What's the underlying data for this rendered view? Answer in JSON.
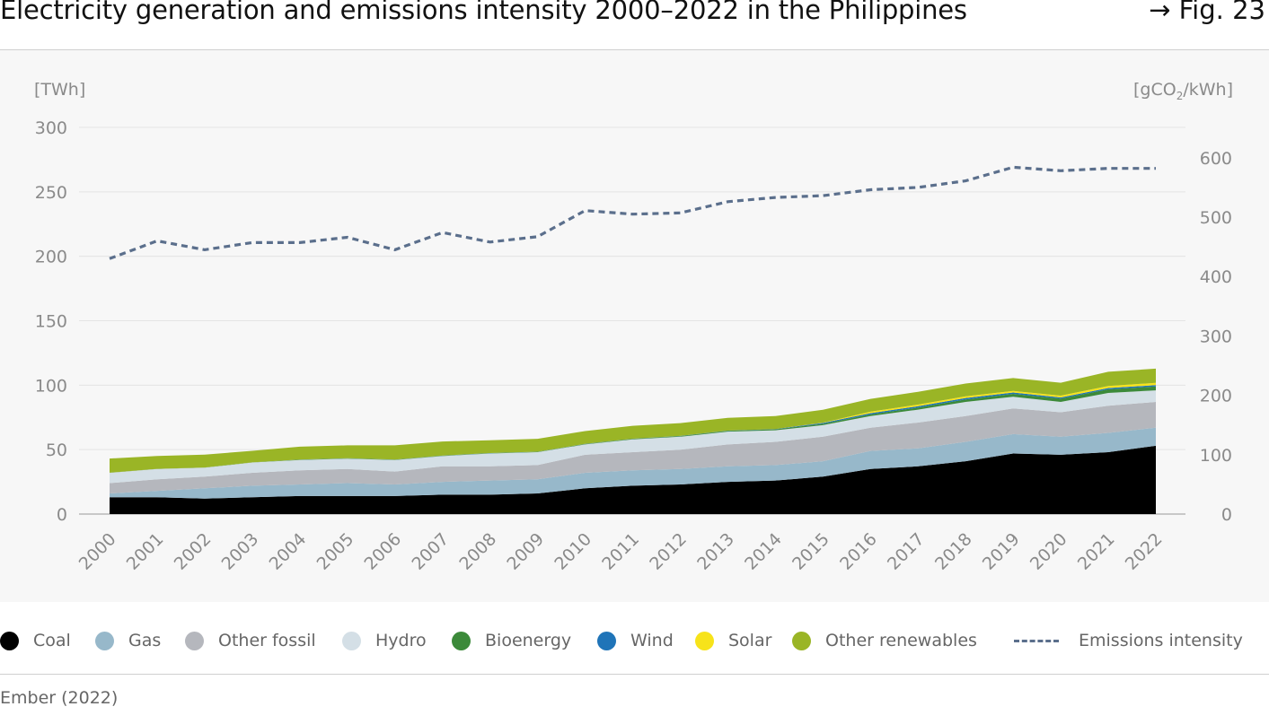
{
  "header": {
    "title": "Electricity generation and emissions intensity 2000–2022 in the Philippines",
    "fig": "→ Fig. 23"
  },
  "source": "Ember (2022)",
  "legend": [
    {
      "key": "coal",
      "label": "Coal",
      "color": "#000000",
      "style": "dot"
    },
    {
      "key": "gas",
      "label": "Gas",
      "color": "#97b8ca",
      "style": "dot"
    },
    {
      "key": "other_fossil",
      "label": "Other fossil",
      "color": "#b5b7bd",
      "style": "dot"
    },
    {
      "key": "hydro",
      "label": "Hydro",
      "color": "#d4dfe6",
      "style": "dot"
    },
    {
      "key": "bioenergy",
      "label": "Bioenergy",
      "color": "#3c8a3a",
      "style": "dot"
    },
    {
      "key": "wind",
      "label": "Wind",
      "color": "#1f74b8",
      "style": "dot"
    },
    {
      "key": "solar",
      "label": "Solar",
      "color": "#f7e31a",
      "style": "dot"
    },
    {
      "key": "other_renewables",
      "label": "Other renewables",
      "color": "#9ab526",
      "style": "dot"
    },
    {
      "key": "emissions",
      "label": "Emissions intensity",
      "color": "#5b6f8c",
      "style": "dash"
    }
  ],
  "chart_data": {
    "type": "area",
    "title": "Electricity generation and emissions intensity 2000–2022 in the Philippines",
    "x": [
      "2000",
      "2001",
      "2002",
      "2003",
      "2004",
      "2005",
      "2006",
      "2007",
      "2008",
      "2009",
      "2010",
      "2011",
      "2012",
      "2013",
      "2014",
      "2015",
      "2016",
      "2017",
      "2018",
      "2019",
      "2020",
      "2021",
      "2022"
    ],
    "left_axis": {
      "label": "[TWh]",
      "ylim": [
        0,
        300
      ],
      "ticks": [
        0,
        50,
        100,
        150,
        200,
        250,
        300
      ]
    },
    "right_axis": {
      "label_parts": [
        "[gCO",
        "2",
        "/kWh]"
      ],
      "ylim": [
        0,
        650
      ],
      "ticks": [
        0,
        100,
        200,
        300,
        400,
        500,
        600
      ]
    },
    "grid": true,
    "legend_position": "bottom",
    "stacked_series": [
      {
        "key": "coal",
        "name": "Coal",
        "color": "#000000",
        "values": [
          13,
          13,
          12,
          13,
          14,
          14,
          14,
          15,
          15,
          16,
          20,
          22,
          23,
          25,
          26,
          29,
          35,
          37,
          41,
          47,
          46,
          48,
          53
        ]
      },
      {
        "key": "gas",
        "name": "Gas",
        "color": "#97b8ca",
        "values": [
          3,
          5,
          8,
          9,
          9,
          10,
          9,
          10,
          11,
          11,
          12,
          12,
          12,
          12,
          12,
          12,
          14,
          14,
          15,
          15,
          14,
          15,
          14
        ]
      },
      {
        "key": "other_fossil",
        "name": "Other fossil",
        "color": "#b5b7bd",
        "values": [
          8,
          9,
          9,
          10,
          11,
          11,
          10,
          12,
          11,
          11,
          14,
          14,
          15,
          17,
          18,
          19,
          18,
          20,
          20,
          20,
          19,
          21,
          20
        ]
      },
      {
        "key": "hydro",
        "name": "Hydro",
        "color": "#d4dfe6",
        "values": [
          8,
          8,
          7,
          8,
          8,
          8,
          9,
          8,
          10,
          10,
          8,
          10,
          10,
          10,
          9,
          9,
          9,
          10,
          11,
          9,
          8,
          10,
          9
        ]
      },
      {
        "key": "bioenergy",
        "name": "Bioenergy",
        "color": "#3c8a3a",
        "values": [
          0.1,
          0.1,
          0.1,
          0.1,
          0.2,
          0.2,
          0.2,
          0.2,
          0.2,
          0.3,
          0.3,
          0.4,
          0.5,
          0.6,
          0.8,
          1.0,
          1.3,
          1.6,
          1.9,
          2.3,
          2.6,
          2.8,
          3.0
        ]
      },
      {
        "key": "wind",
        "name": "Wind",
        "color": "#1f74b8",
        "values": [
          0,
          0,
          0,
          0,
          0.1,
          0.1,
          0.1,
          0.1,
          0.1,
          0.1,
          0.1,
          0.1,
          0.1,
          0.1,
          0.2,
          0.7,
          1.0,
          1.1,
          1.2,
          1.0,
          0.9,
          1.0,
          1.0
        ]
      },
      {
        "key": "solar",
        "name": "Solar",
        "color": "#f7e31a",
        "values": [
          0,
          0,
          0,
          0,
          0,
          0,
          0,
          0,
          0,
          0,
          0,
          0,
          0,
          0,
          0,
          0.2,
          1.1,
          1.2,
          1.2,
          1.2,
          1.4,
          1.6,
          1.8
        ]
      },
      {
        "key": "other_renewables",
        "name": "Other renewables",
        "color": "#9ab526",
        "values": [
          11,
          10,
          10,
          9,
          10,
          10,
          11,
          11,
          10,
          10,
          10,
          10,
          10,
          10,
          10,
          10,
          10,
          10,
          10,
          10,
          10,
          11,
          11
        ]
      }
    ],
    "line_series": {
      "key": "emissions",
      "name": "Emissions intensity",
      "color": "#5b6f8c",
      "axis": "right",
      "dashed": true,
      "values": [
        430,
        460,
        445,
        457,
        457,
        466,
        445,
        474,
        458,
        467,
        511,
        505,
        507,
        526,
        533,
        536,
        546,
        550,
        561,
        584,
        578,
        582,
        582
      ]
    }
  }
}
